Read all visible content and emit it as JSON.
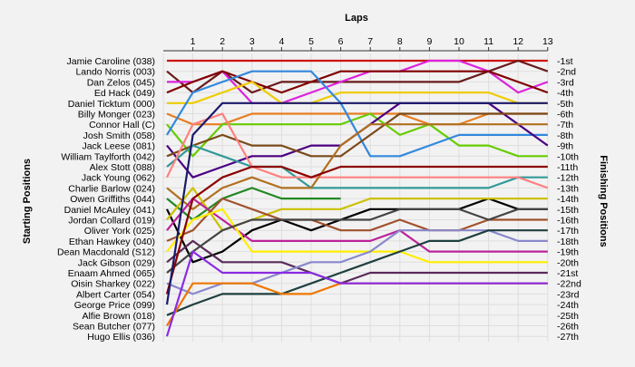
{
  "chart_data": {
    "type": "line",
    "title": "Laps",
    "ylabel_left": "Starting Positions",
    "ylabel_right": "Finishing Positions",
    "laps": [
      1,
      2,
      3,
      4,
      5,
      6,
      7,
      8,
      9,
      10,
      11,
      12,
      13
    ],
    "finish_labels": [
      "1st",
      "2nd",
      "3rd",
      "4th",
      "5th",
      "6th",
      "7th",
      "8th",
      "9th",
      "10th",
      "11th",
      "12th",
      "13th",
      "14th",
      "15th",
      "16th",
      "17th",
      "18th",
      "19th",
      "20th",
      "21st",
      "22nd",
      "23rd",
      "24th",
      "25th",
      "26th",
      "27th"
    ],
    "grid": true,
    "series": [
      {
        "name": "Jamie Caroline (038)",
        "color": "#cc1111",
        "positions": [
          1,
          1,
          1,
          1,
          1,
          1,
          1,
          1,
          1,
          1,
          1,
          1,
          1,
          1
        ]
      },
      {
        "name": "Lando Norris (003)",
        "color": "#6a1a1a",
        "positions": [
          2,
          4,
          2,
          4,
          3,
          3,
          3,
          3,
          3,
          3,
          3,
          2,
          1,
          2
        ]
      },
      {
        "name": "Dan Zelos (045)",
        "color": "#dd22dd",
        "positions": [
          3,
          3,
          2,
          5,
          5,
          4,
          3,
          2,
          2,
          1,
          1,
          2,
          4,
          3
        ]
      },
      {
        "name": "Ed Hack (049)",
        "color": "#800000",
        "positions": [
          4,
          3,
          2,
          3,
          4,
          3,
          2,
          2,
          2,
          2,
          2,
          2,
          3,
          4
        ]
      },
      {
        "name": "Daniel Ticktum (000)",
        "color": "#eecc00",
        "positions": [
          5,
          5,
          4,
          3,
          5,
          5,
          4,
          4,
          4,
          4,
          4,
          4,
          5,
          5
        ]
      },
      {
        "name": "Billy Monger (023)",
        "color": "#e67e22",
        "positions": [
          6,
          7,
          7,
          6,
          6,
          6,
          6,
          6,
          6,
          7,
          7,
          6,
          6,
          6
        ]
      },
      {
        "name": "Connor Hall (C)",
        "color": "#66cc00",
        "positions": [
          7,
          10,
          7,
          7,
          7,
          7,
          7,
          6,
          8,
          7,
          9,
          9,
          10,
          10
        ]
      },
      {
        "name": "Josh Smith (058)",
        "color": "#3388dd",
        "positions": [
          8,
          4,
          3,
          2,
          2,
          2,
          5,
          10,
          10,
          9,
          8,
          8,
          8,
          8
        ]
      },
      {
        "name": "Jack Leese (081)",
        "color": "#4b0082",
        "positions": [
          9,
          12,
          11,
          10,
          10,
          9,
          9,
          7,
          5,
          5,
          5,
          5,
          7,
          9
        ]
      },
      {
        "name": "William Taylforth (042)",
        "color": "#7a4a1a",
        "positions": [
          10,
          9,
          8,
          9,
          9,
          10,
          10,
          8,
          6,
          6,
          6,
          6,
          6,
          6
        ]
      },
      {
        "name": "Alex Stott (088)",
        "color": "#339999",
        "positions": [
          11,
          9,
          10,
          11,
          11,
          13,
          13,
          13,
          13,
          13,
          13,
          13,
          12,
          12
        ]
      },
      {
        "name": "Jack Young (062)",
        "color": "#ff8080",
        "positions": [
          12,
          7,
          6,
          11,
          12,
          12,
          12,
          12,
          12,
          12,
          12,
          12,
          12,
          13
        ]
      },
      {
        "name": "Charlie Barlow (024)",
        "color": "#b07020",
        "positions": [
          13,
          15,
          13,
          12,
          13,
          13,
          9,
          7,
          7,
          7,
          7,
          7,
          7,
          7
        ]
      },
      {
        "name": "Owen Griffiths (044)",
        "color": "#228822",
        "positions": [
          14,
          16,
          14,
          13,
          14,
          14,
          14
        ]
      },
      {
        "name": "Daniel McAuley (041)",
        "color": "#000000",
        "positions": [
          15,
          20,
          19,
          17,
          16,
          17,
          16,
          15,
          15,
          15,
          15,
          14,
          15,
          15
        ]
      },
      {
        "name": "Jordan Collard (019)",
        "color": "#ccc000",
        "positions": [
          16,
          13,
          17,
          16,
          15,
          15,
          15,
          14,
          14,
          14,
          14,
          14,
          14,
          14
        ]
      },
      {
        "name": "Oliver York (025)",
        "color": "#bb2299",
        "positions": [
          17,
          14,
          16,
          18,
          18,
          18,
          18,
          18,
          17,
          19,
          19,
          19,
          19,
          19
        ]
      },
      {
        "name": "Ethan Hawkey (040)",
        "color": "#a0522d",
        "positions": [
          18,
          17,
          14,
          15,
          16,
          16,
          17,
          17,
          16,
          17,
          17,
          16,
          16,
          16
        ]
      },
      {
        "name": "Dean Macdonald (S12)",
        "color": "#ffee00",
        "positions": [
          19,
          16,
          15,
          19,
          19,
          19,
          19,
          19,
          19,
          20,
          20,
          20,
          20,
          20
        ]
      },
      {
        "name": "Jack Gibson (029)",
        "color": "#5a2a5a",
        "positions": [
          20,
          18,
          20,
          20,
          20,
          21,
          22,
          21,
          21,
          21,
          21,
          21,
          21,
          21
        ]
      },
      {
        "name": "Enaam Ahmed (065)",
        "color": "#444444",
        "positions": [
          21,
          19,
          17,
          16,
          16,
          16,
          16,
          16,
          15,
          15,
          15,
          16,
          15,
          15
        ]
      },
      {
        "name": "Oisin Sharkey (022)",
        "color": "#8888cc",
        "positions": [
          22,
          23,
          22,
          22,
          21,
          20,
          20,
          19,
          17,
          17,
          17,
          17,
          18,
          18
        ]
      },
      {
        "name": "Albert Carter (054)",
        "color": "#8b0000",
        "positions": [
          23,
          14,
          12,
          11,
          11,
          12,
          11,
          11,
          11,
          11,
          11,
          11,
          11,
          11
        ]
      },
      {
        "name": "George Price (099)",
        "color": "#1a1a6a",
        "positions": [
          24,
          8,
          5,
          5,
          5,
          5,
          5,
          5,
          5,
          5,
          5,
          5,
          5,
          5
        ]
      },
      {
        "name": "Alfie Brown (018)",
        "color": "#1f3f3f",
        "positions": [
          25,
          24,
          23,
          23,
          23,
          22,
          21,
          20,
          19,
          18,
          18,
          17,
          17,
          17
        ]
      },
      {
        "name": "Sean Butcher (077)",
        "color": "#ee7700",
        "positions": [
          26,
          22,
          22,
          22,
          23,
          23,
          22,
          22,
          22,
          22,
          22,
          22,
          22,
          22
        ]
      },
      {
        "name": "Hugo Ellis (036)",
        "color": "#8a2be2",
        "positions": [
          27,
          19,
          21,
          21,
          21,
          21,
          22,
          22,
          22,
          22,
          22,
          22,
          22,
          22
        ]
      }
    ]
  }
}
